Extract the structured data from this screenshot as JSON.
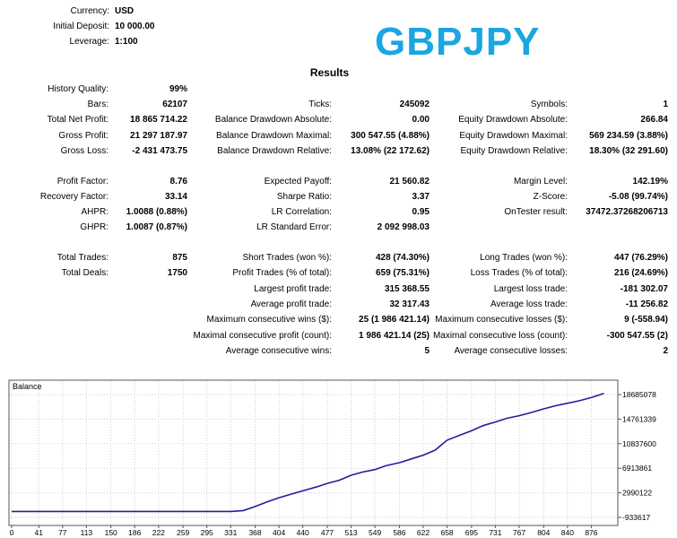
{
  "symbol_title": "GBPJPY",
  "header": {
    "currency_label": "Currency:",
    "currency_value": "USD",
    "deposit_label": "Initial Deposit:",
    "deposit_value": "10 000.00",
    "leverage_label": "Leverage:",
    "leverage_value": "1:100"
  },
  "results_title": "Results",
  "col1": [
    {
      "label": "History Quality:",
      "value": "99%"
    },
    {
      "label": "Bars:",
      "value": "62107"
    },
    {
      "label": "Total Net Profit:",
      "value": "18 865 714.22"
    },
    {
      "label": "Gross Profit:",
      "value": "21 297 187.97"
    },
    {
      "label": "Gross Loss:",
      "value": "-2 431 473.75"
    },
    {
      "label": "Profit Factor:",
      "value": "8.76"
    },
    {
      "label": "Recovery Factor:",
      "value": "33.14"
    },
    {
      "label": "AHPR:",
      "value": "1.0088 (0.88%)"
    },
    {
      "label": "GHPR:",
      "value": "1.0087 (0.87%)"
    },
    {
      "label": "Total Trades:",
      "value": "875"
    },
    {
      "label": "Total Deals:",
      "value": "1750"
    }
  ],
  "col2": [
    {
      "label": "Ticks:",
      "value": "245092"
    },
    {
      "label": "Balance Drawdown Absolute:",
      "value": "0.00"
    },
    {
      "label": "Balance Drawdown Maximal:",
      "value": "300 547.55 (4.88%)"
    },
    {
      "label": "Balance Drawdown Relative:",
      "value": "13.08% (22 172.62)"
    },
    {
      "label": "Expected Payoff:",
      "value": "21 560.82"
    },
    {
      "label": "Sharpe Ratio:",
      "value": "3.37"
    },
    {
      "label": "LR Correlation:",
      "value": "0.95"
    },
    {
      "label": "LR Standard Error:",
      "value": "2 092 998.03"
    },
    {
      "label": "Short Trades (won %):",
      "value": "428 (74.30%)"
    },
    {
      "label": "Profit Trades (% of total):",
      "value": "659 (75.31%)"
    },
    {
      "label": "Largest profit trade:",
      "value": "315 368.55"
    },
    {
      "label": "Average profit trade:",
      "value": "32 317.43"
    },
    {
      "label": "Maximum consecutive wins ($):",
      "value": "25 (1 986 421.14)"
    },
    {
      "label": "Maximal consecutive profit (count):",
      "value": "1 986 421.14 (25)"
    },
    {
      "label": "Average consecutive wins:",
      "value": "5"
    }
  ],
  "col3": [
    {
      "label": "Symbols:",
      "value": "1"
    },
    {
      "label": "Equity Drawdown Absolute:",
      "value": "266.84"
    },
    {
      "label": "Equity Drawdown Maximal:",
      "value": "569 234.59 (3.88%)"
    },
    {
      "label": "Equity Drawdown Relative:",
      "value": "18.30% (32 291.60)"
    },
    {
      "label": "Margin Level:",
      "value": "142.19%"
    },
    {
      "label": "Z-Score:",
      "value": "-5.08 (99.74%)"
    },
    {
      "label": "OnTester result:",
      "value": "37472.37268206713"
    },
    {
      "label": "Long Trades (won %):",
      "value": "447 (76.29%)"
    },
    {
      "label": "Loss Trades (% of total):",
      "value": "216 (24.69%)"
    },
    {
      "label": "Largest loss trade:",
      "value": "-181 302.07"
    },
    {
      "label": "Average loss trade:",
      "value": "-11 256.82"
    },
    {
      "label": "Maximum consecutive losses ($):",
      "value": "9 (-558.94)"
    },
    {
      "label": "Maximal consecutive loss (count):",
      "value": "-300 547.55 (2)"
    },
    {
      "label": "Average consecutive losses:",
      "value": "2"
    }
  ],
  "chart_data": {
    "type": "line",
    "title": "Balance",
    "line_color": "#1f1f9a",
    "ylim": [
      -933617,
      19700000
    ],
    "xlim": [
      0,
      912
    ],
    "y_ticks": [
      "18685078",
      "14761339",
      "10837600",
      "6913861",
      "2990122",
      "-933617"
    ],
    "y_tick_values": [
      18685078,
      14761339,
      10837600,
      6913861,
      2990122,
      -933617
    ],
    "x_ticks": [
      "0",
      "41",
      "77",
      "113",
      "150",
      "186",
      "222",
      "259",
      "295",
      "331",
      "368",
      "404",
      "440",
      "477",
      "513",
      "549",
      "586",
      "622",
      "658",
      "695",
      "731",
      "767",
      "804",
      "840",
      "876"
    ],
    "series": [
      {
        "x": [
          0,
          41,
          77,
          113,
          150,
          186,
          222,
          259,
          295,
          331,
          350,
          368,
          385,
          404,
          420,
          440,
          460,
          477,
          495,
          513,
          530,
          549,
          565,
          586,
          604,
          622,
          640,
          658,
          675,
          695,
          712,
          731,
          749,
          767,
          785,
          804,
          822,
          840,
          858,
          876,
          895
        ],
        "y": [
          10000,
          10000,
          10000,
          10000,
          10000,
          10000,
          10000,
          10000,
          10000,
          10000,
          150000,
          800000,
          1500000,
          2200000,
          2700000,
          3300000,
          3900000,
          4500000,
          5000000,
          5800000,
          6300000,
          6700000,
          7300000,
          7800000,
          8400000,
          9000000,
          9800000,
          11400000,
          12100000,
          12900000,
          13700000,
          14300000,
          14900000,
          15300000,
          15800000,
          16400000,
          16900000,
          17300000,
          17700000,
          18200000,
          18865714
        ]
      }
    ]
  }
}
